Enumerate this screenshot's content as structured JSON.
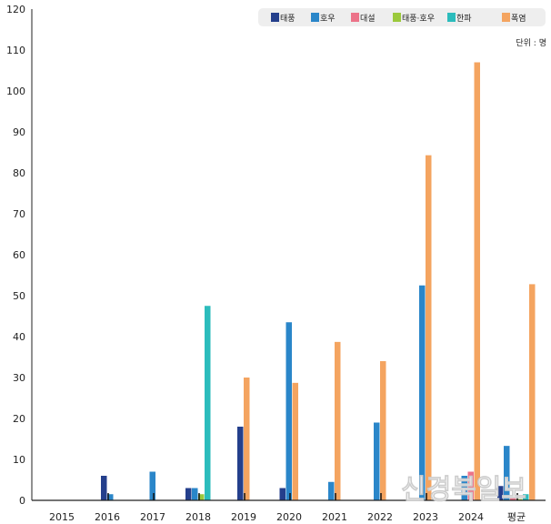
{
  "chart_data": {
    "type": "bar",
    "title": "",
    "unit_label": "단위 : 명",
    "categories": [
      "2015",
      "2016",
      "2017",
      "2018",
      "2019",
      "2020",
      "2021",
      "2022",
      "2023",
      "2024",
      "평균"
    ],
    "ylim": [
      0,
      120
    ],
    "yticks": [
      0,
      10,
      20,
      30,
      40,
      50,
      60,
      70,
      80,
      90,
      100,
      110,
      120
    ],
    "legend_position": "top-right",
    "series": [
      {
        "name": "태풍",
        "color": "#243f8c",
        "values": [
          0,
          6,
          0,
          3,
          18,
          3,
          0,
          0,
          0,
          0,
          3.5
        ]
      },
      {
        "name": "호우",
        "color": "#2a86c9",
        "values": [
          0,
          1.5,
          7,
          3,
          0,
          43.5,
          4.5,
          19,
          52.5,
          6,
          13.3
        ]
      },
      {
        "name": "대설",
        "color": "#ec7389",
        "values": [
          0,
          0,
          0,
          0,
          0,
          0,
          0,
          0,
          0,
          7,
          0.5
        ]
      },
      {
        "name": "태풍·호우",
        "color": "#9bc93c",
        "values": [
          0,
          0,
          0,
          1.5,
          0,
          0,
          0,
          0,
          0,
          0,
          0.3
        ]
      },
      {
        "name": "한파",
        "color": "#2cbcbc",
        "values": [
          0,
          0,
          0,
          47.5,
          0,
          0,
          0,
          0,
          0,
          0,
          1.5
        ]
      },
      {
        "name": "폭염",
        "color": "#f4a460",
        "values": [
          0,
          0,
          0,
          0,
          30,
          28.7,
          38.7,
          34,
          84.3,
          107,
          52.8
        ]
      }
    ]
  },
  "watermark": "신경북일보"
}
